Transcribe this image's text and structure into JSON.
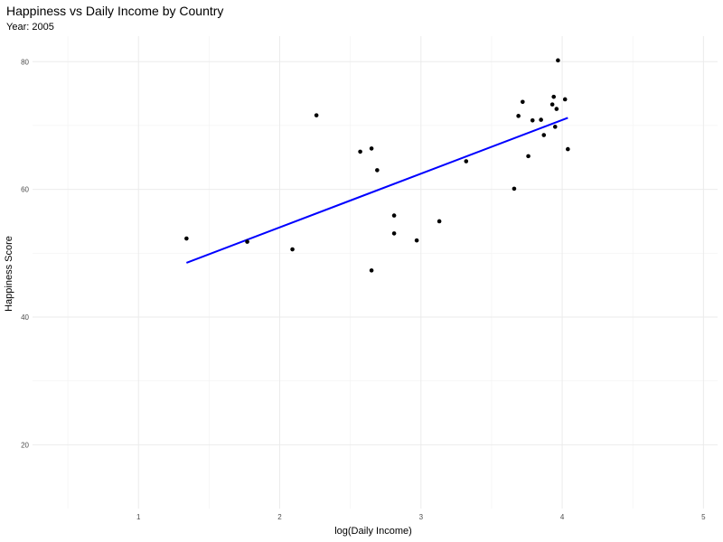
{
  "chart_data": {
    "type": "scatter",
    "title": "Happiness vs Daily Income by Country",
    "subtitle": "Year: 2005",
    "xlabel": "log(Daily Income)",
    "ylabel": "Happiness Score",
    "xlim": [
      0.25,
      5.1
    ],
    "ylim": [
      10,
      84
    ],
    "x_ticks": [
      1,
      2,
      3,
      4,
      5
    ],
    "y_ticks": [
      20,
      40,
      60,
      80
    ],
    "grid": true,
    "point_color": "#000000",
    "trend_color": "#0000ff",
    "trend_line": {
      "x": [
        1.34,
        4.04
      ],
      "y": [
        48.5,
        71.2
      ]
    },
    "points": [
      {
        "x": 1.34,
        "y": 52.3
      },
      {
        "x": 1.77,
        "y": 51.8
      },
      {
        "x": 2.09,
        "y": 50.6
      },
      {
        "x": 2.26,
        "y": 71.6
      },
      {
        "x": 2.57,
        "y": 65.9
      },
      {
        "x": 2.65,
        "y": 66.4
      },
      {
        "x": 2.65,
        "y": 47.3
      },
      {
        "x": 2.69,
        "y": 63.0
      },
      {
        "x": 2.81,
        "y": 55.9
      },
      {
        "x": 2.81,
        "y": 53.1
      },
      {
        "x": 2.97,
        "y": 52.0
      },
      {
        "x": 3.13,
        "y": 55.0
      },
      {
        "x": 3.32,
        "y": 64.4
      },
      {
        "x": 3.66,
        "y": 60.1
      },
      {
        "x": 3.69,
        "y": 71.5
      },
      {
        "x": 3.72,
        "y": 73.7
      },
      {
        "x": 3.76,
        "y": 65.2
      },
      {
        "x": 3.79,
        "y": 70.8
      },
      {
        "x": 3.85,
        "y": 70.9
      },
      {
        "x": 3.87,
        "y": 68.5
      },
      {
        "x": 3.93,
        "y": 73.3
      },
      {
        "x": 3.94,
        "y": 74.5
      },
      {
        "x": 3.95,
        "y": 69.8
      },
      {
        "x": 3.96,
        "y": 72.6
      },
      {
        "x": 3.97,
        "y": 80.2
      },
      {
        "x": 4.02,
        "y": 74.1
      },
      {
        "x": 4.04,
        "y": 66.3
      }
    ]
  }
}
